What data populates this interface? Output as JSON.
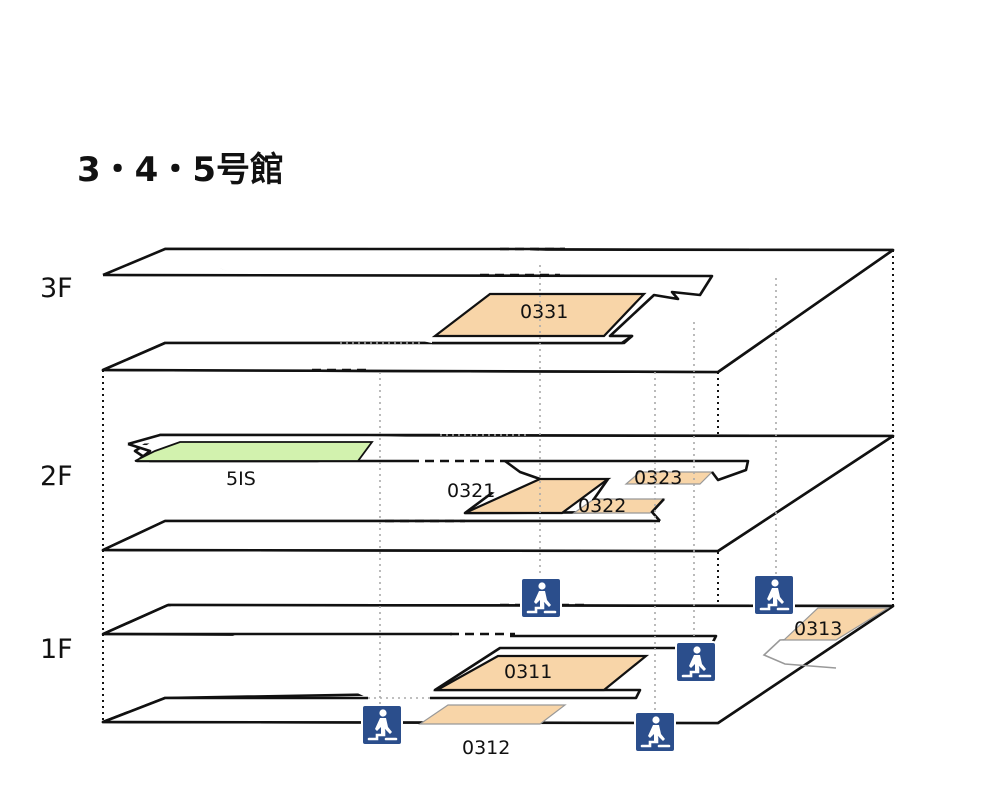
{
  "title": "3・4・5号館",
  "floors": [
    {
      "label": "3F"
    },
    {
      "label": "2F"
    },
    {
      "label": "1F"
    }
  ],
  "rooms": {
    "r0331": "0331",
    "r5IS": "5IS",
    "r0321": "0321",
    "r0322": "0322",
    "r0323": "0323",
    "r0311": "0311",
    "r0312": "0312",
    "r0313": "0313"
  },
  "colors": {
    "room": "#f8d5a8",
    "room_5IS": "#d2f2ae",
    "stairs_icon": "#2b4e8c"
  },
  "icons": [
    "stairs-icon"
  ]
}
